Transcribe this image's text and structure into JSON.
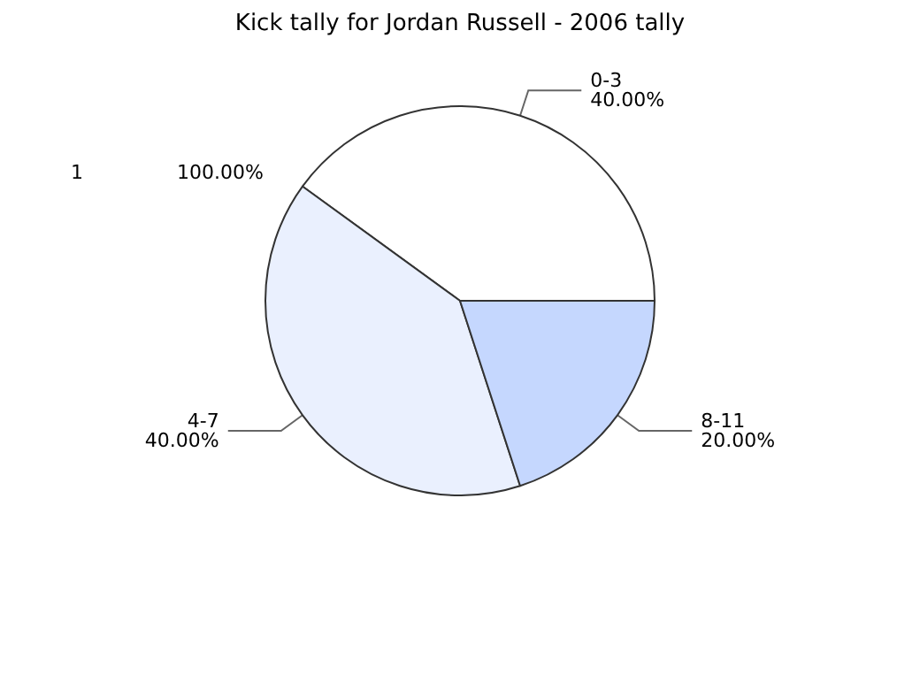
{
  "chart_data": {
    "type": "pie",
    "title": "Kick tally for Jordan Russell - 2006 tally",
    "categories": [
      "0-3",
      "4-7",
      "8-11"
    ],
    "values": [
      40,
      40,
      20
    ],
    "colors": [
      "#ffffff",
      "#eaf0fe",
      "#c5d7fe"
    ],
    "value_labels": [
      "40.00%",
      "40.00%",
      "20.00%"
    ],
    "annotations": [
      "1",
      "100.00%"
    ]
  }
}
